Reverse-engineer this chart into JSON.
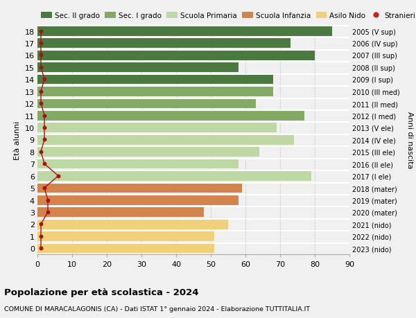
{
  "ages": [
    18,
    17,
    16,
    15,
    14,
    13,
    12,
    11,
    10,
    9,
    8,
    7,
    6,
    5,
    4,
    3,
    2,
    1,
    0
  ],
  "years": [
    "2005 (V sup)",
    "2006 (IV sup)",
    "2007 (III sup)",
    "2008 (II sup)",
    "2009 (I sup)",
    "2010 (III med)",
    "2011 (II med)",
    "2012 (I med)",
    "2013 (V ele)",
    "2014 (IV ele)",
    "2015 (III ele)",
    "2016 (II ele)",
    "2017 (I ele)",
    "2018 (mater)",
    "2019 (mater)",
    "2020 (mater)",
    "2021 (nido)",
    "2022 (nido)",
    "2023 (nido)"
  ],
  "values": [
    85,
    73,
    80,
    58,
    68,
    68,
    63,
    77,
    69,
    74,
    64,
    58,
    79,
    59,
    58,
    48,
    55,
    51,
    51
  ],
  "stranieri": [
    1,
    1,
    1,
    1,
    2,
    1,
    1,
    2,
    2,
    2,
    1,
    2,
    6,
    2,
    3,
    3,
    1,
    1,
    1
  ],
  "bar_colors": [
    "#4a7a3f",
    "#4a7a3f",
    "#4a7a3f",
    "#4a7a3f",
    "#4a7a3f",
    "#82aa62",
    "#82aa62",
    "#82aa62",
    "#bdd8a3",
    "#bdd8a3",
    "#bdd8a3",
    "#bdd8a3",
    "#bdd8a3",
    "#d4844a",
    "#d4844a",
    "#d4844a",
    "#f0d07a",
    "#f0d07a",
    "#f0d07a"
  ],
  "legend_labels": [
    "Sec. II grado",
    "Sec. I grado",
    "Scuola Primaria",
    "Scuola Infanzia",
    "Asilo Nido",
    "Stranieri"
  ],
  "legend_colors": [
    "#4a7a3f",
    "#82aa62",
    "#bdd8a3",
    "#d4844a",
    "#f0d07a",
    "#cc2222"
  ],
  "ylabel_left": "Età alunni",
  "ylabel_right": "Anni di nascita",
  "title": "Popolazione per età scolastica - 2024",
  "subtitle": "COMUNE DI MARACALAGONIS (CA) - Dati ISTAT 1° gennaio 2024 - Elaborazione TUTTITALIA.IT",
  "xlim": [
    0,
    90
  ],
  "xticks": [
    0,
    10,
    20,
    30,
    40,
    50,
    60,
    70,
    80,
    90
  ],
  "background_color": "#f0f0f0",
  "stranieri_color": "#aa1111",
  "grid_color": "#cccccc",
  "bar_height": 0.82
}
